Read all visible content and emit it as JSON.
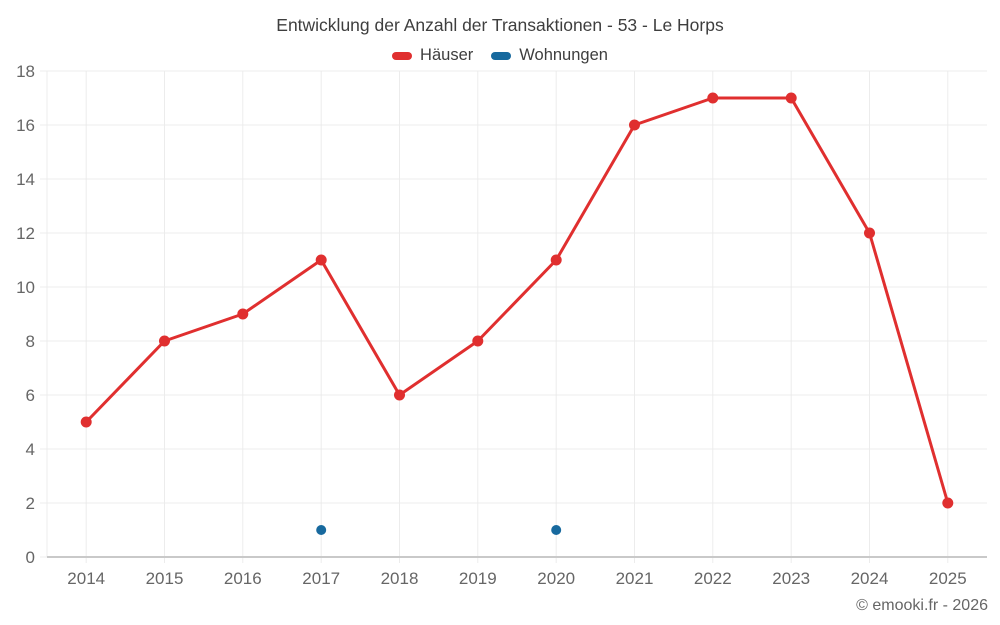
{
  "title": "Entwicklung der Anzahl der Transaktionen - 53 - Le Horps",
  "legend": [
    {
      "label": "Häuser",
      "color": "#e02f2f"
    },
    {
      "label": "Wohnungen",
      "color": "#17699e"
    }
  ],
  "copyright": "© emooki.fr - 2026",
  "chart_data": {
    "type": "line",
    "title": "Entwicklung der Anzahl der Transaktionen - 53 - Le Horps",
    "categories": [
      "2014",
      "2015",
      "2016",
      "2017",
      "2018",
      "2019",
      "2020",
      "2021",
      "2022",
      "2023",
      "2024",
      "2025"
    ],
    "series": [
      {
        "name": "Häuser",
        "type": "line",
        "color": "#e02f2f",
        "values": [
          5,
          8,
          9,
          11,
          6,
          8,
          11,
          16,
          17,
          17,
          12,
          2
        ]
      },
      {
        "name": "Wohnungen",
        "type": "scatter",
        "color": "#17699e",
        "values": [
          null,
          null,
          null,
          1,
          null,
          null,
          1,
          null,
          null,
          null,
          null,
          null
        ]
      }
    ],
    "xlabel": "",
    "ylabel": "",
    "ylim": [
      0,
      18
    ],
    "ytick_step": 2,
    "grid": true,
    "grid_color": "#ececec",
    "axis_color": "#c9c9c9",
    "tick_label_color": "#666666",
    "legend_position": "top"
  }
}
